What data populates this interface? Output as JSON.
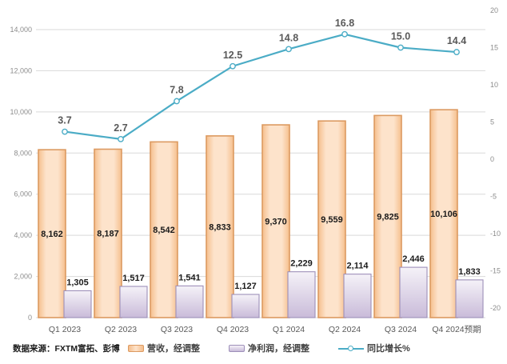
{
  "chart_data": {
    "type": "combo-bar-line",
    "categories": [
      "Q1 2023",
      "Q2 2023",
      "Q3 2023",
      "Q4 2023",
      "Q1 2024",
      "Q2 2024",
      "Q3 2024",
      "Q4 2024预期"
    ],
    "series": [
      {
        "name": "营收，经调整",
        "type": "bar",
        "axis": "left",
        "values": [
          8162,
          8187,
          8542,
          8833,
          9370,
          9559,
          9825,
          10106
        ],
        "labels": [
          "8,162",
          "8,187",
          "8,542",
          "8,833",
          "9,370",
          "9,559",
          "9,825",
          "10,106"
        ],
        "fill_light": "#FDE3CB",
        "fill_dark": "#F5BE8C",
        "border": "#DC9A61"
      },
      {
        "name": "净利润，经调整",
        "type": "bar",
        "axis": "left",
        "values": [
          1305,
          1517,
          1541,
          1127,
          2229,
          2114,
          2446,
          1833
        ],
        "labels": [
          "1,305",
          "1,517",
          "1,541",
          "1,127",
          "2,229",
          "2,114",
          "2,446",
          "1,833"
        ],
        "fill_light": "#F5F2F8",
        "fill_dark": "#C9BBD9",
        "border": "#9D8FB9"
      },
      {
        "name": "同比增长%",
        "type": "line",
        "axis": "right",
        "values": [
          3.7,
          2.7,
          7.8,
          12.5,
          14.8,
          16.8,
          15.0,
          14.4
        ],
        "labels": [
          "3.7",
          "2.7",
          "7.8",
          "12.5",
          "14.8",
          "16.8",
          "15.0",
          "14.4"
        ],
        "color": "#4BACC6",
        "marker_fill": "#FFFFFF"
      }
    ],
    "left_axis": {
      "min": 0,
      "max": 14000,
      "step": 2000,
      "ticks": [
        {
          "v": 0,
          "label": "0"
        },
        {
          "v": 2000,
          "label": "2,000"
        },
        {
          "v": 4000,
          "label": "4,000"
        },
        {
          "v": 6000,
          "label": "6,000"
        },
        {
          "v": 8000,
          "label": "8,000"
        },
        {
          "v": 10000,
          "label": "10,000"
        },
        {
          "v": 12000,
          "label": "12,000"
        },
        {
          "v": 14000,
          "label": "14,000"
        }
      ]
    },
    "right_axis": {
      "min": -20,
      "max": 20,
      "step": 5,
      "ticks": [
        {
          "v": 20,
          "label": "20"
        },
        {
          "v": 15,
          "label": "15"
        },
        {
          "v": 10,
          "label": "10"
        },
        {
          "v": 5,
          "label": "5"
        },
        {
          "v": 0,
          "label": "0"
        },
        {
          "v": -5,
          "label": "-5"
        },
        {
          "v": -10,
          "label": "-10"
        },
        {
          "v": -15,
          "label": "-15"
        },
        {
          "v": -20,
          "label": "-20"
        }
      ]
    },
    "grid": true,
    "legend_position": "bottom",
    "source_note": "数据来源：FXTM富拓、彭博",
    "colors": {
      "gridline": "#D9D9D9",
      "axis_text": "#8C8C8C",
      "x_label_text": "#595959",
      "bar_label_text": "#1a1a1a",
      "line_label_text": "#595959"
    }
  }
}
